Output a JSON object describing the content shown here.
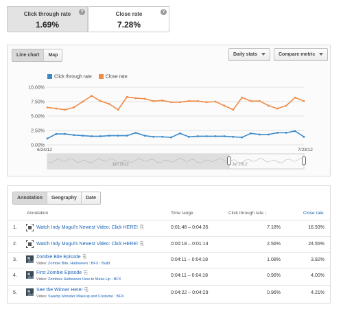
{
  "metrics": [
    {
      "label": "Click through rate",
      "value": "1.69%"
    },
    {
      "label": "Close rate",
      "value": "7.28%"
    }
  ],
  "help_glyph": "?",
  "chart_controls": {
    "line_chart": "Line chart",
    "map": "Map",
    "daily_stats": "Daily stats",
    "compare_metric": "Compare metric"
  },
  "timeline": {
    "month_label_1": "Jun 2012",
    "month_label_2": "Jul 2012"
  },
  "chart_data": {
    "type": "line",
    "x_start_label": "6/24/12",
    "x_end_label": "7/23/12",
    "yticks": [
      "10.00%",
      "7.50%",
      "5.00%",
      "2.50%",
      "0.00%"
    ],
    "ylim": [
      0,
      10
    ],
    "series": [
      {
        "name": "Click through rate",
        "color": "#3a89c9",
        "values": [
          1.1,
          1.9,
          1.9,
          1.7,
          1.6,
          1.5,
          1.5,
          1.6,
          1.6,
          1.6,
          2.1,
          1.6,
          1.4,
          1.4,
          1.3,
          2.0,
          1.4,
          1.5,
          1.5,
          1.5,
          1.5,
          1.4,
          1.3,
          2.0,
          1.8,
          1.8,
          2.1,
          2.1,
          2.4,
          1.4
        ]
      },
      {
        "name": "Close rate",
        "color": "#f08a46",
        "values": [
          6.5,
          6.3,
          6.1,
          6.5,
          7.5,
          8.5,
          7.6,
          7.1,
          6.1,
          8.3,
          8.1,
          8.0,
          7.6,
          7.7,
          7.4,
          7.4,
          7.6,
          7.6,
          7.4,
          7.5,
          6.8,
          6.1,
          8.2,
          7.6,
          7.6,
          6.8,
          6.3,
          6.8,
          8.2,
          7.6
        ]
      }
    ]
  },
  "tabs": [
    "Annotation",
    "Geography",
    "Date"
  ],
  "table": {
    "headers": {
      "annotation": "Annotation",
      "time": "Time range",
      "ctr": "Click through rate",
      "ctr_arrow": "↓",
      "close": "Close rate"
    },
    "rows": [
      {
        "idx": "1.",
        "title": "Watch Indy Mogul's Newest Video: Click HERE!",
        "video_prefix": "",
        "video": "",
        "time": "0:01:46 – 0:04:35",
        "ctr": "7.18%",
        "close": "16.93%",
        "type": "note"
      },
      {
        "idx": "2.",
        "title": "Watch Indy Mogul's Newest Video: Click HERE!",
        "video_prefix": "",
        "video": "",
        "time": "0:00:18 – 0:01:14",
        "ctr": "2.56%",
        "close": "24.55%",
        "type": "note"
      },
      {
        "idx": "3.",
        "title": "Zombie Bite Episode",
        "video_prefix": "Video: ",
        "video": "Zombie Bite, Halloween : BFX : Build",
        "time": "0:04:11 – 0:04:18",
        "ctr": "1.08%",
        "close": "3.82%",
        "type": "video"
      },
      {
        "idx": "4.",
        "title": "First Zombie Episode",
        "video_prefix": "Video: ",
        "video": "Zombies Halloween How-to Make-Up : BFX",
        "time": "0:04:11 – 0:04:18",
        "ctr": "0.96%",
        "close": "4.00%",
        "type": "video"
      },
      {
        "idx": "5.",
        "title": "See the Winner Here!",
        "video_prefix": "Video: ",
        "video": "Swamp Monster Makeup and Costume : BFX",
        "time": "0:04:22 – 0:04:29",
        "ctr": "0.96%",
        "close": "4.21%",
        "type": "video"
      }
    ]
  }
}
